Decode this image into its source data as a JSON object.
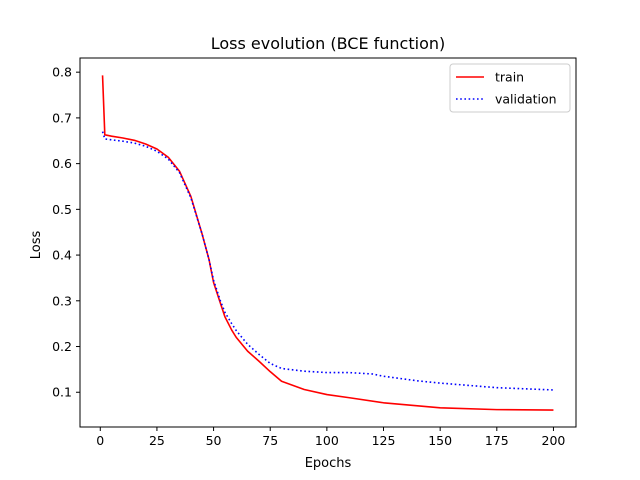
{
  "chart_data": {
    "type": "line",
    "title": "Loss evolution (BCE function)",
    "xlabel": "Epochs",
    "ylabel": "Loss",
    "xlim": [
      -8.95,
      209.95
    ],
    "ylim": [
      0.024,
      0.831
    ],
    "xticks": [
      0,
      25,
      50,
      75,
      100,
      125,
      150,
      175,
      200
    ],
    "yticks": [
      0.1,
      0.2,
      0.3,
      0.4,
      0.5,
      0.6,
      0.7,
      0.8
    ],
    "grid": false,
    "legend_position": "top-right",
    "series": [
      {
        "name": "train",
        "color": "#ff0000",
        "style": "solid",
        "x": [
          1,
          2,
          5,
          10,
          15,
          20,
          25,
          30,
          35,
          40,
          45,
          48,
          50,
          53,
          55,
          58,
          60,
          65,
          70,
          75,
          80,
          90,
          100,
          110,
          125,
          150,
          175,
          200
        ],
        "y": [
          0.793,
          0.663,
          0.66,
          0.656,
          0.651,
          0.643,
          0.632,
          0.614,
          0.583,
          0.528,
          0.445,
          0.39,
          0.34,
          0.295,
          0.265,
          0.236,
          0.22,
          0.19,
          0.168,
          0.145,
          0.124,
          0.106,
          0.095,
          0.088,
          0.077,
          0.066,
          0.062,
          0.061
        ]
      },
      {
        "name": "validation",
        "color": "#0000ff",
        "style": "dotted",
        "x": [
          1,
          2,
          5,
          10,
          15,
          20,
          25,
          30,
          35,
          40,
          45,
          48,
          50,
          53,
          55,
          58,
          60,
          65,
          70,
          75,
          80,
          90,
          100,
          110,
          120,
          125,
          140,
          150,
          175,
          200
        ],
        "y": [
          0.67,
          0.654,
          0.652,
          0.649,
          0.645,
          0.638,
          0.627,
          0.61,
          0.58,
          0.525,
          0.445,
          0.39,
          0.345,
          0.3,
          0.275,
          0.25,
          0.235,
          0.205,
          0.183,
          0.163,
          0.152,
          0.146,
          0.143,
          0.143,
          0.14,
          0.135,
          0.125,
          0.12,
          0.11,
          0.105
        ]
      }
    ]
  }
}
